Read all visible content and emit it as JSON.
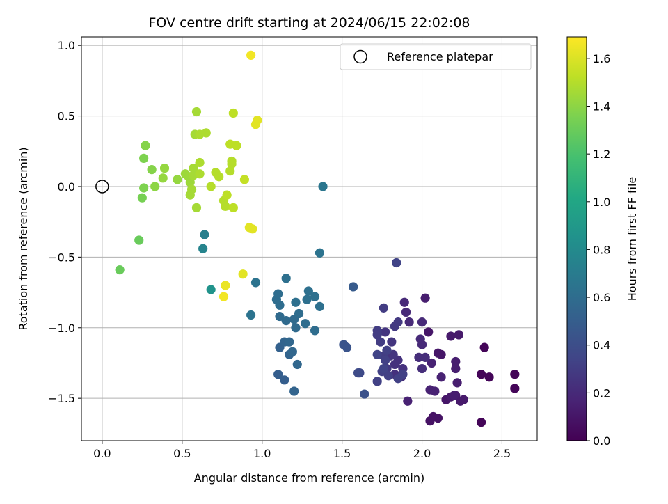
{
  "chart_data": {
    "type": "scatter",
    "title": "FOV centre drift starting at 2024/06/15 22:02:08",
    "xlabel": "Angular distance from reference (arcmin)",
    "ylabel": "Rotation from reference (arcmin)",
    "xlim": [
      -0.13,
      2.72
    ],
    "ylim": [
      -1.8,
      1.06
    ],
    "x_ticks": [
      0.0,
      0.5,
      1.0,
      1.5,
      2.0,
      2.5
    ],
    "x_tick_labels": [
      "0.0",
      "0.5",
      "1.0",
      "1.5",
      "2.0",
      "2.5"
    ],
    "y_ticks": [
      1.0,
      0.5,
      0.0,
      -0.5,
      -1.0,
      -1.5
    ],
    "y_tick_labels": [
      "1.0",
      "0.5",
      "0.0",
      "−0.5",
      "−1.0",
      "−1.5"
    ],
    "grid": true,
    "legend": {
      "position": "top-right",
      "entries": [
        "Reference platepar"
      ]
    },
    "colorbar": {
      "label": "Hours from first FF file",
      "range": [
        0.0,
        1.69
      ],
      "ticks": [
        0.0,
        0.2,
        0.4,
        0.6,
        0.8,
        1.0,
        1.2,
        1.4,
        1.6
      ],
      "tick_labels": [
        "0.0",
        "0.2",
        "0.4",
        "0.6",
        "0.8",
        "1.0",
        "1.2",
        "1.4",
        "1.6"
      ],
      "colormap": "viridis"
    },
    "reference_point": {
      "x": 0.0,
      "y": 0.0,
      "name": "Reference platepar"
    },
    "points": [
      [
        2.37,
        -1.67,
        0.02
      ],
      [
        2.37,
        -1.33,
        0.02
      ],
      [
        2.39,
        -1.14,
        0.02
      ],
      [
        2.42,
        -1.35,
        0.02
      ],
      [
        2.58,
        -1.33,
        0.02
      ],
      [
        2.58,
        -1.43,
        0.02
      ],
      [
        2.05,
        -1.66,
        0.08
      ],
      [
        2.07,
        -1.63,
        0.08
      ],
      [
        2.1,
        -1.64,
        0.08
      ],
      [
        2.04,
        -1.03,
        0.1
      ],
      [
        2.1,
        -1.18,
        0.1
      ],
      [
        2.12,
        -1.19,
        0.1
      ],
      [
        2.15,
        -1.51,
        0.1
      ],
      [
        2.18,
        -1.49,
        0.12
      ],
      [
        2.21,
        -1.48,
        0.12
      ],
      [
        2.24,
        -1.52,
        0.12
      ],
      [
        2.26,
        -1.51,
        0.12
      ],
      [
        2.18,
        -1.06,
        0.12
      ],
      [
        2.23,
        -1.05,
        0.12
      ],
      [
        2.21,
        -1.24,
        0.14
      ],
      [
        2.21,
        -1.29,
        0.14
      ],
      [
        2.22,
        -1.39,
        0.14
      ],
      [
        2.2,
        -1.48,
        0.14
      ],
      [
        2.02,
        -0.79,
        0.14
      ],
      [
        2.06,
        -1.25,
        0.16
      ],
      [
        2.05,
        -1.44,
        0.16
      ],
      [
        2.08,
        -1.45,
        0.16
      ],
      [
        2.12,
        -1.35,
        0.16
      ],
      [
        1.91,
        -1.52,
        0.16
      ],
      [
        1.89,
        -0.82,
        0.2
      ],
      [
        1.9,
        -0.89,
        0.2
      ],
      [
        1.92,
        -0.96,
        0.2
      ],
      [
        2.0,
        -0.96,
        0.2
      ],
      [
        2.0,
        -1.12,
        0.2
      ],
      [
        1.99,
        -1.08,
        0.2
      ],
      [
        1.98,
        -1.21,
        0.22
      ],
      [
        2.02,
        -1.21,
        0.22
      ],
      [
        2.0,
        -1.29,
        0.22
      ],
      [
        1.87,
        -1.35,
        0.22
      ],
      [
        1.88,
        -1.29,
        0.24
      ],
      [
        1.85,
        -1.23,
        0.24
      ],
      [
        1.83,
        -1.26,
        0.24
      ],
      [
        1.83,
        -1.33,
        0.24
      ],
      [
        1.8,
        -1.2,
        0.26
      ],
      [
        1.81,
        -1.1,
        0.26
      ],
      [
        1.82,
        -1.19,
        0.26
      ],
      [
        1.77,
        -1.03,
        0.26
      ],
      [
        1.78,
        -1.29,
        0.28
      ],
      [
        1.85,
        -0.96,
        0.28
      ],
      [
        1.83,
        -0.99,
        0.28
      ],
      [
        1.76,
        -0.86,
        0.3
      ],
      [
        1.74,
        -1.1,
        0.3
      ],
      [
        1.72,
        -1.02,
        0.3
      ],
      [
        1.72,
        -1.05,
        0.3
      ],
      [
        1.76,
        -1.2,
        0.3
      ],
      [
        1.75,
        -1.31,
        0.32
      ],
      [
        1.72,
        -1.38,
        0.32
      ],
      [
        1.78,
        -1.16,
        0.32
      ],
      [
        1.77,
        -1.23,
        0.32
      ],
      [
        1.79,
        -1.34,
        0.32
      ],
      [
        1.85,
        -1.36,
        0.32
      ],
      [
        1.88,
        -1.33,
        0.32
      ],
      [
        1.84,
        -0.54,
        0.34
      ],
      [
        1.72,
        -1.19,
        0.34
      ],
      [
        1.76,
        -1.29,
        0.34
      ],
      [
        1.61,
        -1.32,
        0.36
      ],
      [
        1.6,
        -1.32,
        0.38
      ],
      [
        1.64,
        -1.47,
        0.42
      ],
      [
        1.51,
        -1.12,
        0.44
      ],
      [
        1.53,
        -1.14,
        0.44
      ],
      [
        1.57,
        -0.71,
        0.48
      ],
      [
        1.1,
        -1.33,
        0.5
      ],
      [
        1.14,
        -1.37,
        0.5
      ],
      [
        1.11,
        -1.14,
        0.52
      ],
      [
        1.17,
        -1.19,
        0.54
      ],
      [
        1.2,
        -1.45,
        0.54
      ],
      [
        1.14,
        -1.1,
        0.54
      ],
      [
        1.17,
        -1.1,
        0.56
      ],
      [
        1.22,
        -1.26,
        0.56
      ],
      [
        1.19,
        -1.17,
        0.56
      ],
      [
        1.21,
        -1.0,
        0.58
      ],
      [
        1.11,
        -0.92,
        0.58
      ],
      [
        1.15,
        -0.95,
        0.58
      ],
      [
        1.2,
        -0.94,
        0.58
      ],
      [
        1.23,
        -0.9,
        0.6
      ],
      [
        1.27,
        -0.97,
        0.6
      ],
      [
        1.33,
        -1.02,
        0.6
      ],
      [
        1.11,
        -0.84,
        0.6
      ],
      [
        1.09,
        -0.8,
        0.6
      ],
      [
        1.1,
        -0.76,
        0.6
      ],
      [
        1.21,
        -0.82,
        0.62
      ],
      [
        1.28,
        -0.8,
        0.62
      ],
      [
        1.29,
        -0.74,
        0.62
      ],
      [
        1.33,
        -0.78,
        0.62
      ],
      [
        1.36,
        -0.85,
        0.62
      ],
      [
        1.15,
        -0.65,
        0.62
      ],
      [
        0.96,
        -0.68,
        0.64
      ],
      [
        0.93,
        -0.91,
        0.64
      ],
      [
        1.36,
        -0.47,
        0.64
      ],
      [
        1.38,
        0.0,
        0.66
      ],
      [
        0.64,
        -0.34,
        0.72
      ],
      [
        0.63,
        -0.44,
        0.76
      ],
      [
        0.68,
        -0.73,
        0.86
      ],
      [
        0.11,
        -0.59,
        1.3
      ],
      [
        0.23,
        -0.38,
        1.3
      ],
      [
        0.25,
        -0.08,
        1.34
      ],
      [
        0.26,
        -0.01,
        1.36
      ],
      [
        0.26,
        0.2,
        1.36
      ],
      [
        0.27,
        0.29,
        1.38
      ],
      [
        0.31,
        0.12,
        1.38
      ],
      [
        0.33,
        0.0,
        1.4
      ],
      [
        0.38,
        0.06,
        1.42
      ],
      [
        0.39,
        0.13,
        1.42
      ],
      [
        0.47,
        0.05,
        1.42
      ],
      [
        0.52,
        0.09,
        1.44
      ],
      [
        0.54,
        0.07,
        1.44
      ],
      [
        0.55,
        0.03,
        1.44
      ],
      [
        0.57,
        0.08,
        1.46
      ],
      [
        0.57,
        0.13,
        1.46
      ],
      [
        0.55,
        -0.06,
        1.46
      ],
      [
        0.56,
        -0.02,
        1.46
      ],
      [
        0.59,
        -0.15,
        1.46
      ],
      [
        0.58,
        0.37,
        1.46
      ],
      [
        0.59,
        0.53,
        1.46
      ],
      [
        0.61,
        0.37,
        1.48
      ],
      [
        0.61,
        0.17,
        1.48
      ],
      [
        0.61,
        0.09,
        1.48
      ],
      [
        0.65,
        0.38,
        1.48
      ],
      [
        0.68,
        0.0,
        1.5
      ],
      [
        0.71,
        0.1,
        1.5
      ],
      [
        0.73,
        0.07,
        1.5
      ],
      [
        0.76,
        -0.1,
        1.5
      ],
      [
        0.77,
        -0.14,
        1.5
      ],
      [
        0.8,
        0.11,
        1.5
      ],
      [
        0.81,
        0.18,
        1.5
      ],
      [
        0.81,
        0.16,
        1.5
      ],
      [
        0.82,
        -0.15,
        1.52
      ],
      [
        0.78,
        -0.06,
        1.52
      ],
      [
        0.8,
        0.3,
        1.52
      ],
      [
        0.82,
        0.52,
        1.52
      ],
      [
        0.84,
        0.29,
        1.52
      ],
      [
        0.89,
        0.05,
        1.54
      ],
      [
        0.92,
        -0.29,
        1.62
      ],
      [
        0.94,
        -0.3,
        1.62
      ],
      [
        0.96,
        0.44,
        1.62
      ],
      [
        0.97,
        0.47,
        1.62
      ],
      [
        0.93,
        0.93,
        1.66
      ],
      [
        0.88,
        -0.62,
        1.62
      ],
      [
        0.77,
        -0.7,
        1.64
      ],
      [
        0.76,
        -0.78,
        1.66
      ]
    ]
  }
}
